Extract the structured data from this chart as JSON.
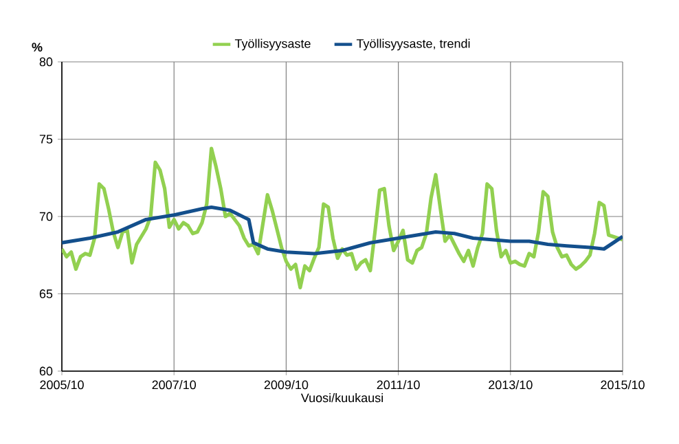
{
  "chart_data": {
    "type": "line",
    "ylabel": "%",
    "xlabel": "Vuosi/kuukausi",
    "xlim": [
      "2005-10",
      "2015-10"
    ],
    "ylim": [
      60,
      80
    ],
    "xticks": [
      {
        "value": "2005-10",
        "label": "2005/10"
      },
      {
        "value": "2007-10",
        "label": "2007/10"
      },
      {
        "value": "2009-10",
        "label": "2009/10"
      },
      {
        "value": "2011-10",
        "label": "2011/10"
      },
      {
        "value": "2013-10",
        "label": "2013/10"
      },
      {
        "value": "2015-10",
        "label": "2015/10"
      }
    ],
    "yticks": [
      60,
      65,
      70,
      75,
      80
    ],
    "grid": true,
    "legend": "top",
    "series": [
      {
        "name": "Työllisyysaste",
        "color": "#92d050",
        "x": [
          "2005-10",
          "2005-11",
          "2005-12",
          "2006-01",
          "2006-02",
          "2006-03",
          "2006-04",
          "2006-05",
          "2006-06",
          "2006-07",
          "2006-08",
          "2006-09",
          "2006-10",
          "2006-11",
          "2006-12",
          "2007-01",
          "2007-02",
          "2007-03",
          "2007-04",
          "2007-05",
          "2007-06",
          "2007-07",
          "2007-08",
          "2007-09",
          "2007-10",
          "2007-11",
          "2007-12",
          "2008-01",
          "2008-02",
          "2008-03",
          "2008-04",
          "2008-05",
          "2008-06",
          "2008-07",
          "2008-08",
          "2008-09",
          "2008-10",
          "2008-11",
          "2008-12",
          "2009-01",
          "2009-02",
          "2009-03",
          "2009-04",
          "2009-05",
          "2009-06",
          "2009-07",
          "2009-08",
          "2009-09",
          "2009-10",
          "2009-11",
          "2009-12",
          "2010-01",
          "2010-02",
          "2010-03",
          "2010-04",
          "2010-05",
          "2010-06",
          "2010-07",
          "2010-08",
          "2010-09",
          "2010-10",
          "2010-11",
          "2010-12",
          "2011-01",
          "2011-02",
          "2011-03",
          "2011-04",
          "2011-05",
          "2011-06",
          "2011-07",
          "2011-08",
          "2011-09",
          "2011-10",
          "2011-11",
          "2011-12",
          "2012-01",
          "2012-02",
          "2012-03",
          "2012-04",
          "2012-05",
          "2012-06",
          "2012-07",
          "2012-08",
          "2012-09",
          "2012-10",
          "2012-11",
          "2012-12",
          "2013-01",
          "2013-02",
          "2013-03",
          "2013-04",
          "2013-05",
          "2013-06",
          "2013-07",
          "2013-08",
          "2013-09",
          "2013-10",
          "2013-11",
          "2013-12",
          "2014-01",
          "2014-02",
          "2014-03",
          "2014-04",
          "2014-05",
          "2014-06",
          "2014-07",
          "2014-08",
          "2014-09",
          "2014-10",
          "2014-11",
          "2014-12",
          "2015-01",
          "2015-02",
          "2015-03",
          "2015-04",
          "2015-05",
          "2015-06",
          "2015-07",
          "2015-08",
          "2015-09",
          "2015-10"
        ],
        "values": [
          67.9,
          67.4,
          67.7,
          66.6,
          67.4,
          67.6,
          67.5,
          68.6,
          72.1,
          71.8,
          70.5,
          69.0,
          68.0,
          69.0,
          69.1,
          67.0,
          68.2,
          68.7,
          69.2,
          70.0,
          73.5,
          73.0,
          71.8,
          69.3,
          69.8,
          69.2,
          69.6,
          69.4,
          68.9,
          69.0,
          69.6,
          70.8,
          74.4,
          73.2,
          71.8,
          70.0,
          70.2,
          69.8,
          69.4,
          68.6,
          68.1,
          68.2,
          67.6,
          69.5,
          71.4,
          70.4,
          69.2,
          68.0,
          67.1,
          66.6,
          66.9,
          65.4,
          66.8,
          66.5,
          67.3,
          68.0,
          70.8,
          70.6,
          68.6,
          67.3,
          67.9,
          67.5,
          67.6,
          66.6,
          67.0,
          67.2,
          66.5,
          69.0,
          71.7,
          71.8,
          69.4,
          67.8,
          68.4,
          69.1,
          67.2,
          67.0,
          67.8,
          68.0,
          68.9,
          71.2,
          72.7,
          70.5,
          68.4,
          68.8,
          68.2,
          67.6,
          67.1,
          67.8,
          66.8,
          68.0,
          68.9,
          72.1,
          71.8,
          69.1,
          67.4,
          67.8,
          67.0,
          67.1,
          66.9,
          66.8,
          67.6,
          67.4,
          69.0,
          71.6,
          71.3,
          69.0,
          68.0,
          67.4,
          67.5,
          66.9,
          66.6,
          66.8,
          67.1,
          67.5,
          68.9,
          70.9,
          70.7,
          68.8,
          68.7,
          68.6,
          68.5
        ]
      },
      {
        "name": "Työllisyysaste, trendi",
        "color": "#134f8c",
        "x": [
          "2005-10",
          "2006-04",
          "2006-10",
          "2007-04",
          "2007-10",
          "2008-04",
          "2008-06",
          "2008-10",
          "2009-02",
          "2009-03",
          "2009-06",
          "2009-10",
          "2010-04",
          "2010-10",
          "2011-04",
          "2011-10",
          "2012-04",
          "2012-06",
          "2012-10",
          "2013-02",
          "2013-06",
          "2013-10",
          "2014-02",
          "2014-06",
          "2014-10",
          "2015-03",
          "2015-06",
          "2015-08",
          "2015-10"
        ],
        "values": [
          68.3,
          68.6,
          69.0,
          69.8,
          70.1,
          70.5,
          70.6,
          70.4,
          69.8,
          68.3,
          67.9,
          67.7,
          67.6,
          67.8,
          68.3,
          68.6,
          68.9,
          69.0,
          68.9,
          68.6,
          68.5,
          68.4,
          68.4,
          68.2,
          68.1,
          68.0,
          67.9,
          68.3,
          68.7
        ]
      }
    ]
  }
}
